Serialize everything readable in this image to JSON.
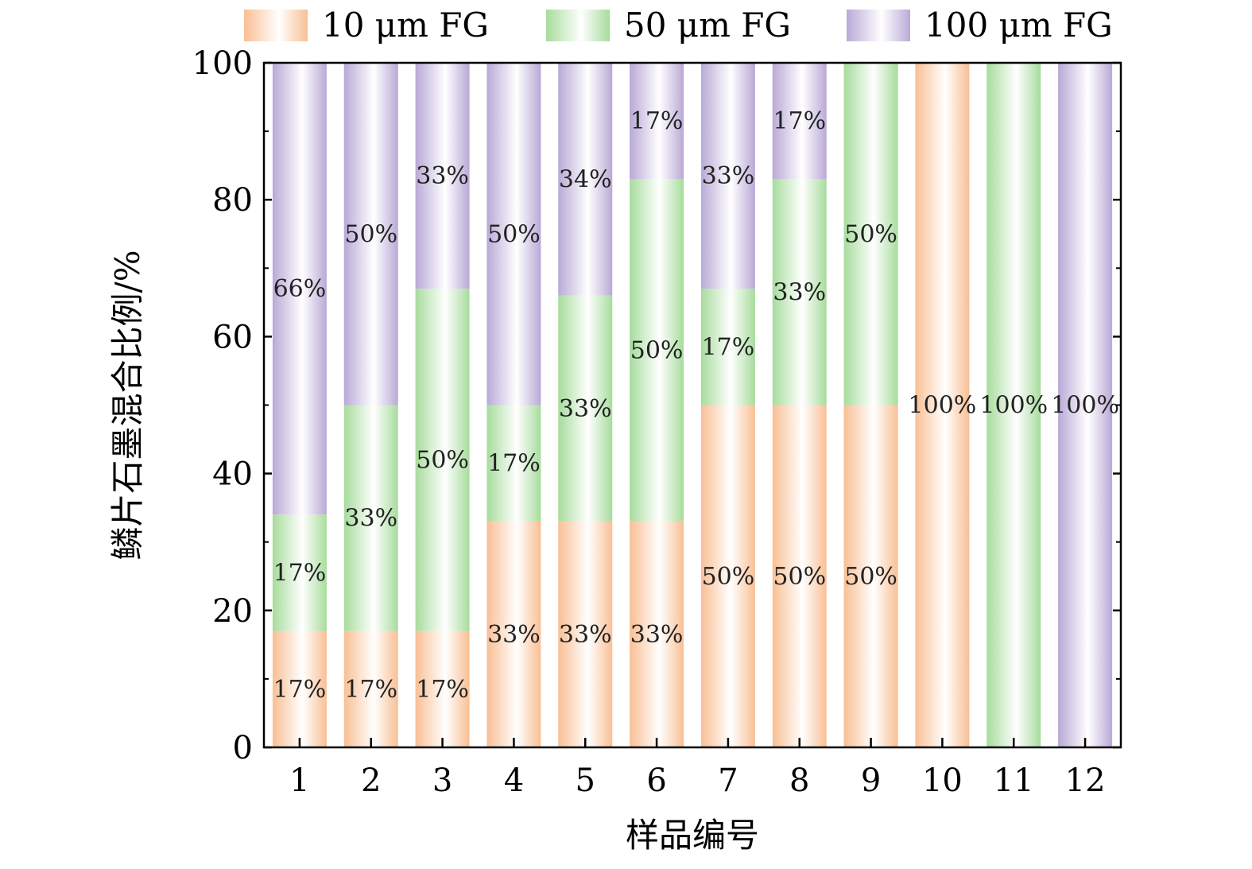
{
  "chart_data": {
    "type": "bar",
    "stacked": true,
    "title": "",
    "xlabel": "样品编号",
    "ylabel": "鳞片石墨混合比例/%",
    "ylim": [
      0,
      100
    ],
    "yticks": [
      0,
      20,
      40,
      60,
      80,
      100
    ],
    "categories": [
      "1",
      "2",
      "3",
      "4",
      "5",
      "6",
      "7",
      "8",
      "9",
      "10",
      "11",
      "12"
    ],
    "legend_position": "top",
    "grid": false,
    "series": [
      {
        "name": "10 μm FG",
        "color": "#f9bf94",
        "values": [
          17,
          17,
          17,
          33,
          33,
          33,
          50,
          50,
          50,
          100,
          0,
          0
        ],
        "labels": [
          "17%",
          "17%",
          "17%",
          "33%",
          "33%",
          "33%",
          "50%",
          "50%",
          "50%",
          "100%",
          "",
          ""
        ]
      },
      {
        "name": "50 μm FG",
        "color": "#a7dc9c",
        "values": [
          17,
          33,
          50,
          17,
          33,
          50,
          17,
          33,
          50,
          0,
          100,
          0
        ],
        "labels": [
          "17%",
          "33%",
          "50%",
          "17%",
          "33%",
          "50%",
          "17%",
          "33%",
          "50%",
          "",
          "100%",
          ""
        ]
      },
      {
        "name": "100 μm FG",
        "color": "#b9a9d6",
        "values": [
          66,
          50,
          33,
          50,
          34,
          17,
          33,
          17,
          0,
          0,
          0,
          100
        ],
        "labels": [
          "66%",
          "50%",
          "33%",
          "50%",
          "34%",
          "17%",
          "33%",
          "17%",
          "",
          "",
          "",
          "100%"
        ]
      }
    ]
  }
}
